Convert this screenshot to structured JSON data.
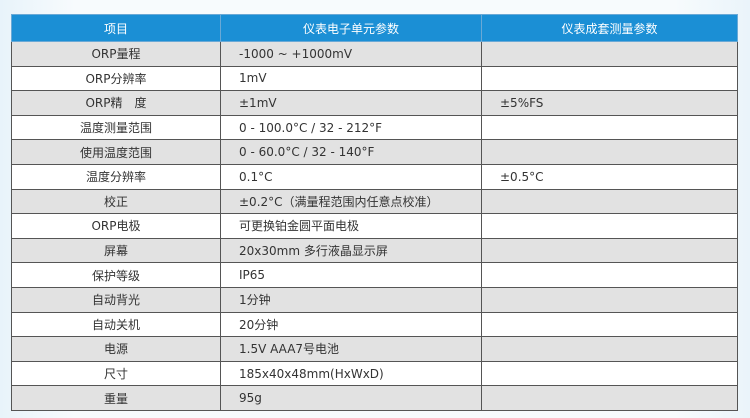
{
  "headers": [
    "项目",
    "仪表电子单元参数",
    "仪表成套测量参数"
  ],
  "rows": [
    [
      "ORP量程",
      "-1000 ~ +1000mV",
      ""
    ],
    [
      "ORP分辨率",
      "1mV",
      ""
    ],
    [
      "ORP精　度",
      "±1mV",
      "±5%FS"
    ],
    [
      "温度测量范围",
      "0 - 100.0°C / 32 - 212°F",
      ""
    ],
    [
      "使用温度范围",
      "0 - 60.0°C / 32 - 140°F",
      ""
    ],
    [
      "温度分辨率",
      "0.1°C",
      "±0.5°C"
    ],
    [
      "校正",
      "±0.2°C（满量程范围内任意点校准）",
      ""
    ],
    [
      "ORP电极",
      "可更换铂金圆平面电极",
      ""
    ],
    [
      "屏幕",
      "20x30mm 多行液晶显示屏",
      ""
    ],
    [
      "保护等级",
      "IP65",
      ""
    ],
    [
      "自动背光",
      "1分钟",
      ""
    ],
    [
      "自动关机",
      "20分钟",
      ""
    ],
    [
      "电源",
      "1.5V  AAA7号电池",
      ""
    ],
    [
      "尺寸",
      "185x40x48mm(HxWxD)",
      ""
    ],
    [
      "重量",
      "95g",
      ""
    ]
  ],
  "colors": {
    "header": "#1b8fd5",
    "stripe": "#e2e2e2"
  }
}
